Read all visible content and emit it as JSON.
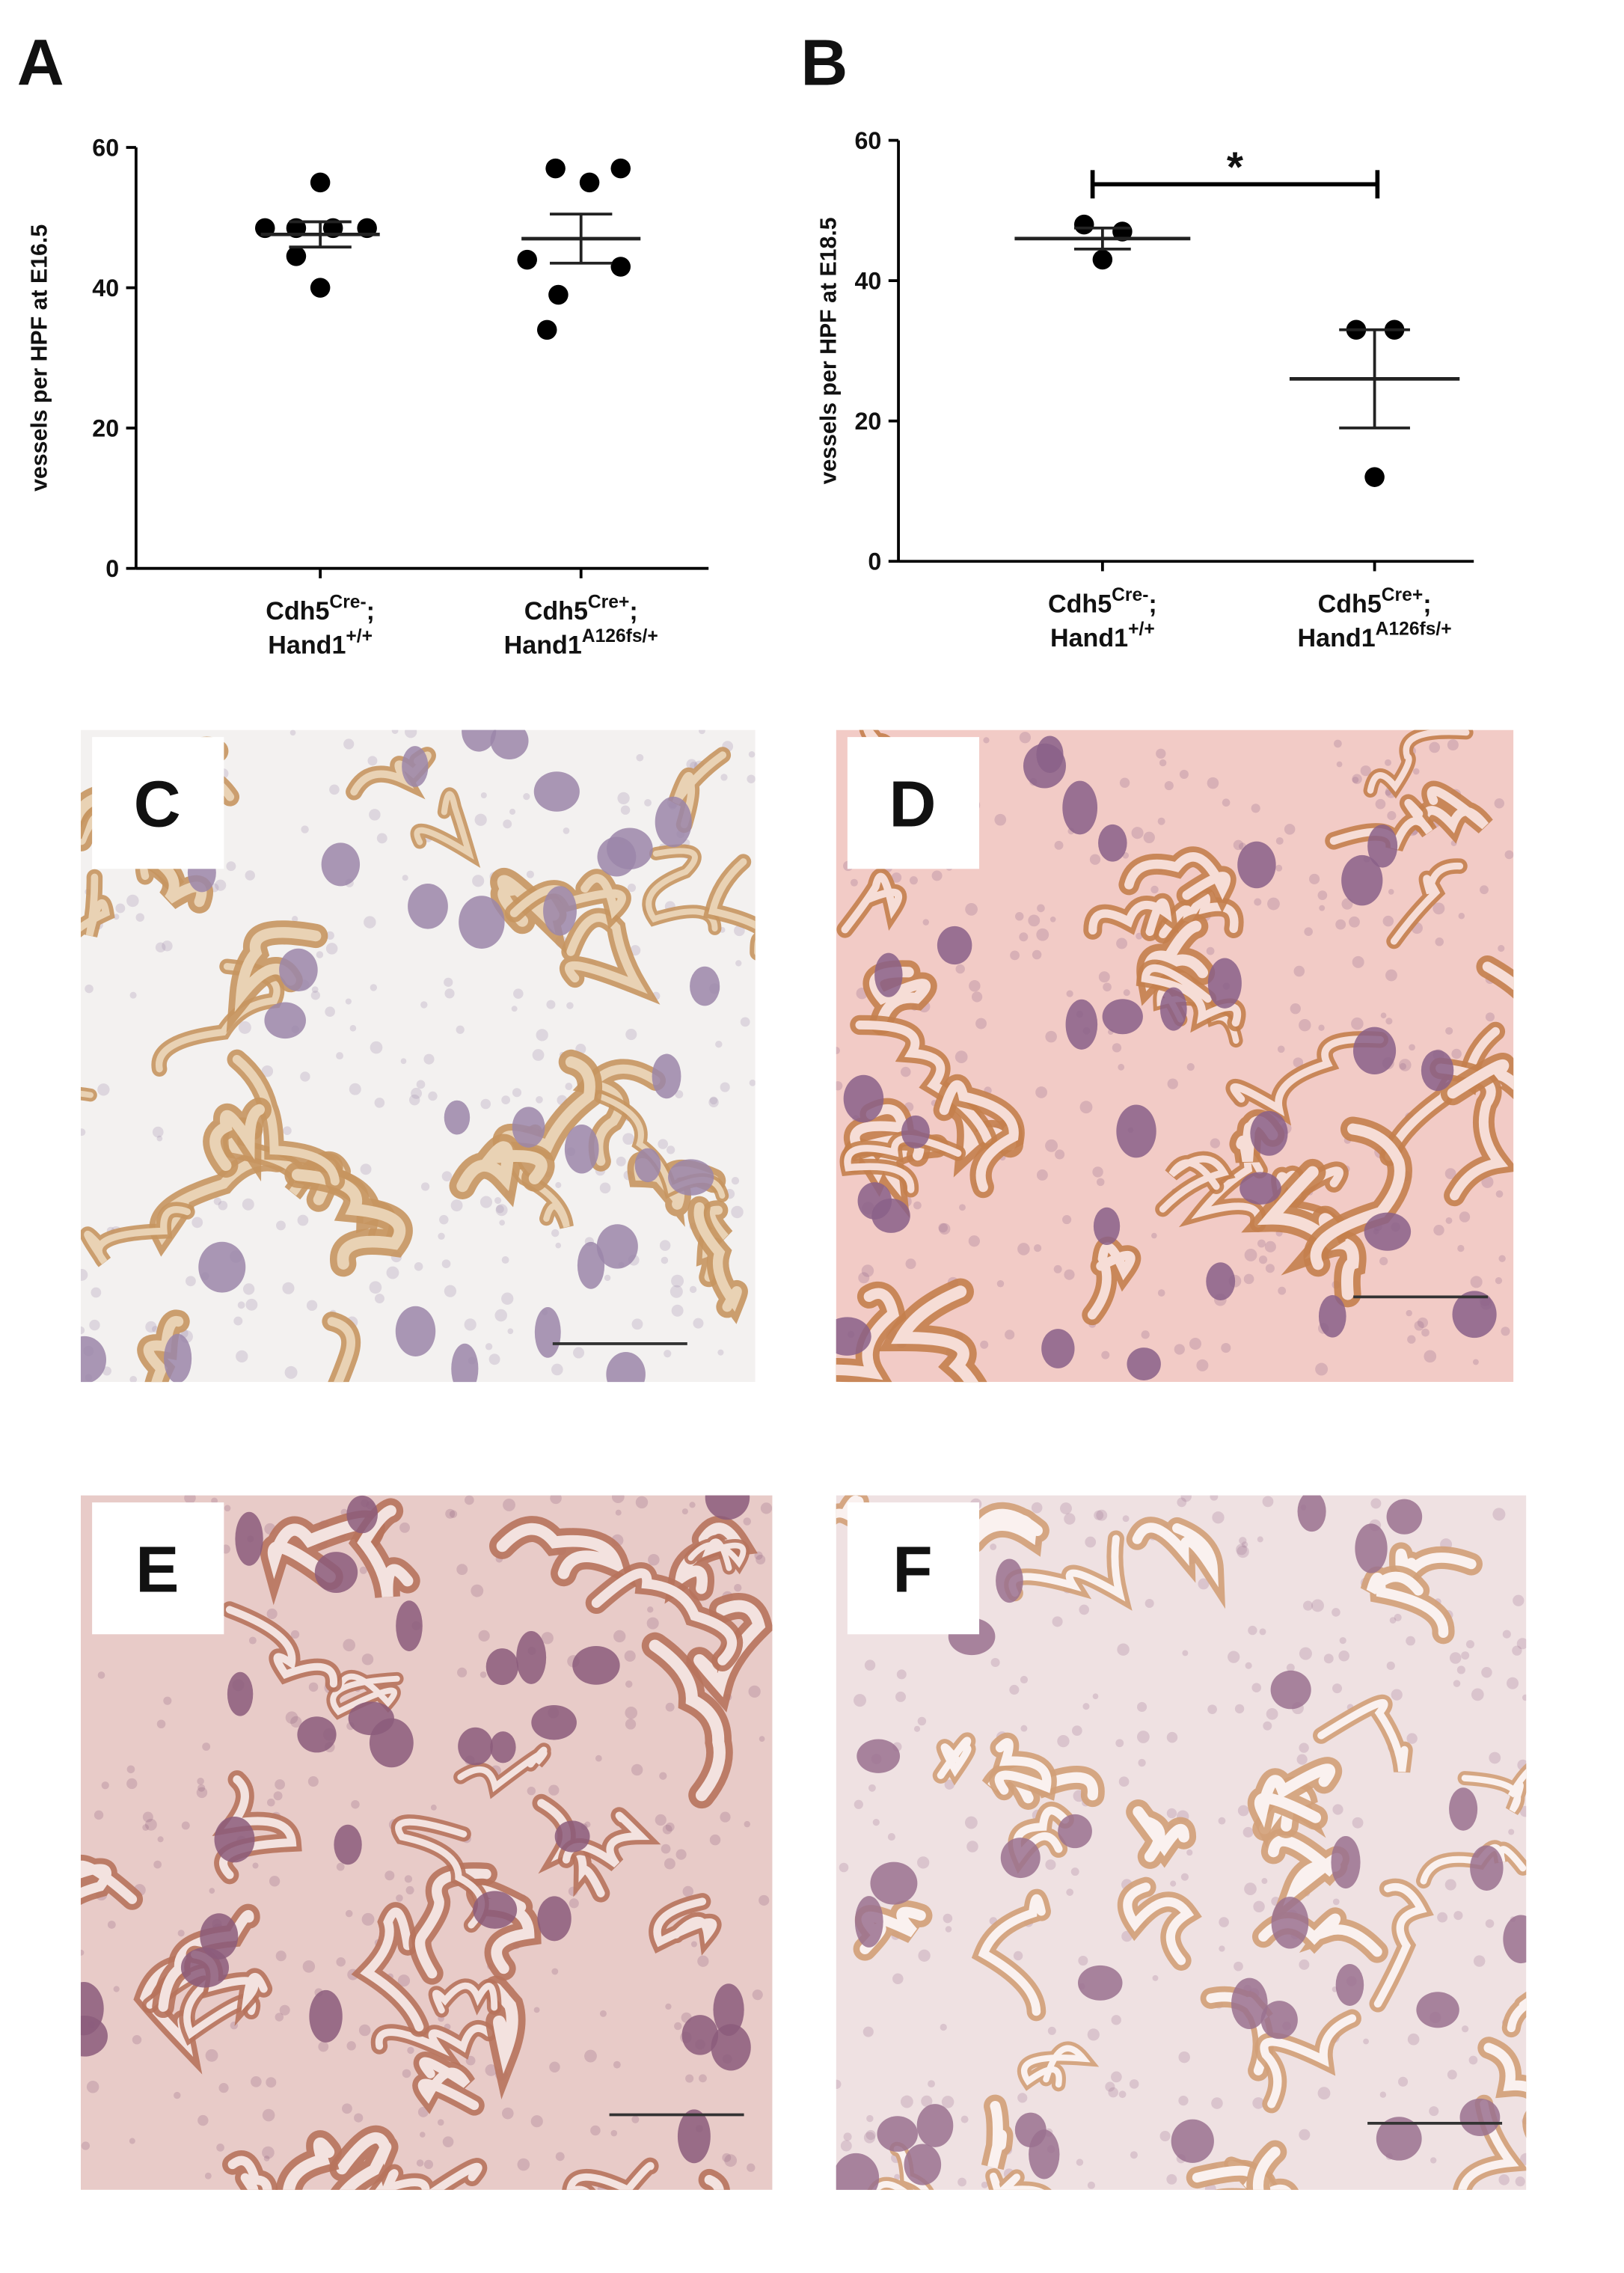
{
  "chart_data": [
    {
      "type": "dot",
      "panel_label": "A",
      "y_label": "vessels per HPF at E16.5",
      "categories": [
        [
          "Cdh5",
          "Cre-",
          ";",
          "Hand1",
          "+/+"
        ],
        [
          "Cdh5",
          "Cre+",
          ";",
          "Hand1",
          "A126fs/+"
        ]
      ],
      "values": [
        [
          55,
          48.5,
          48.5,
          48.5,
          48.5,
          44.5,
          40
        ],
        [
          57,
          57,
          55,
          44,
          43,
          39,
          34
        ]
      ],
      "mean": [
        47.6,
        47
      ],
      "sem": [
        1.8,
        3.5
      ],
      "color": "#000000",
      "ylim": [
        0,
        60
      ],
      "yticks": [
        0,
        20,
        40,
        60
      ],
      "grid": false
    },
    {
      "type": "dot",
      "panel_label": "B",
      "y_label": "vessels per HPF at E18.5",
      "categories": [
        [
          "Cdh5",
          "Cre-",
          ";",
          "Hand1",
          "+/+"
        ],
        [
          "Cdh5",
          "Cre+",
          ";",
          "Hand1",
          "A126fs/+"
        ]
      ],
      "values": [
        [
          48,
          47,
          43
        ],
        [
          33,
          33,
          12
        ]
      ],
      "mean": [
        46,
        26
      ],
      "sem": [
        1.5,
        7
      ],
      "annotation": "*",
      "color": "#000000",
      "ylim": [
        0,
        60
      ],
      "yticks": [
        0,
        20,
        40,
        60
      ],
      "grid": false
    }
  ],
  "images": [
    {
      "label": "C"
    },
    {
      "label": "D"
    },
    {
      "label": "E"
    },
    {
      "label": "F"
    }
  ]
}
